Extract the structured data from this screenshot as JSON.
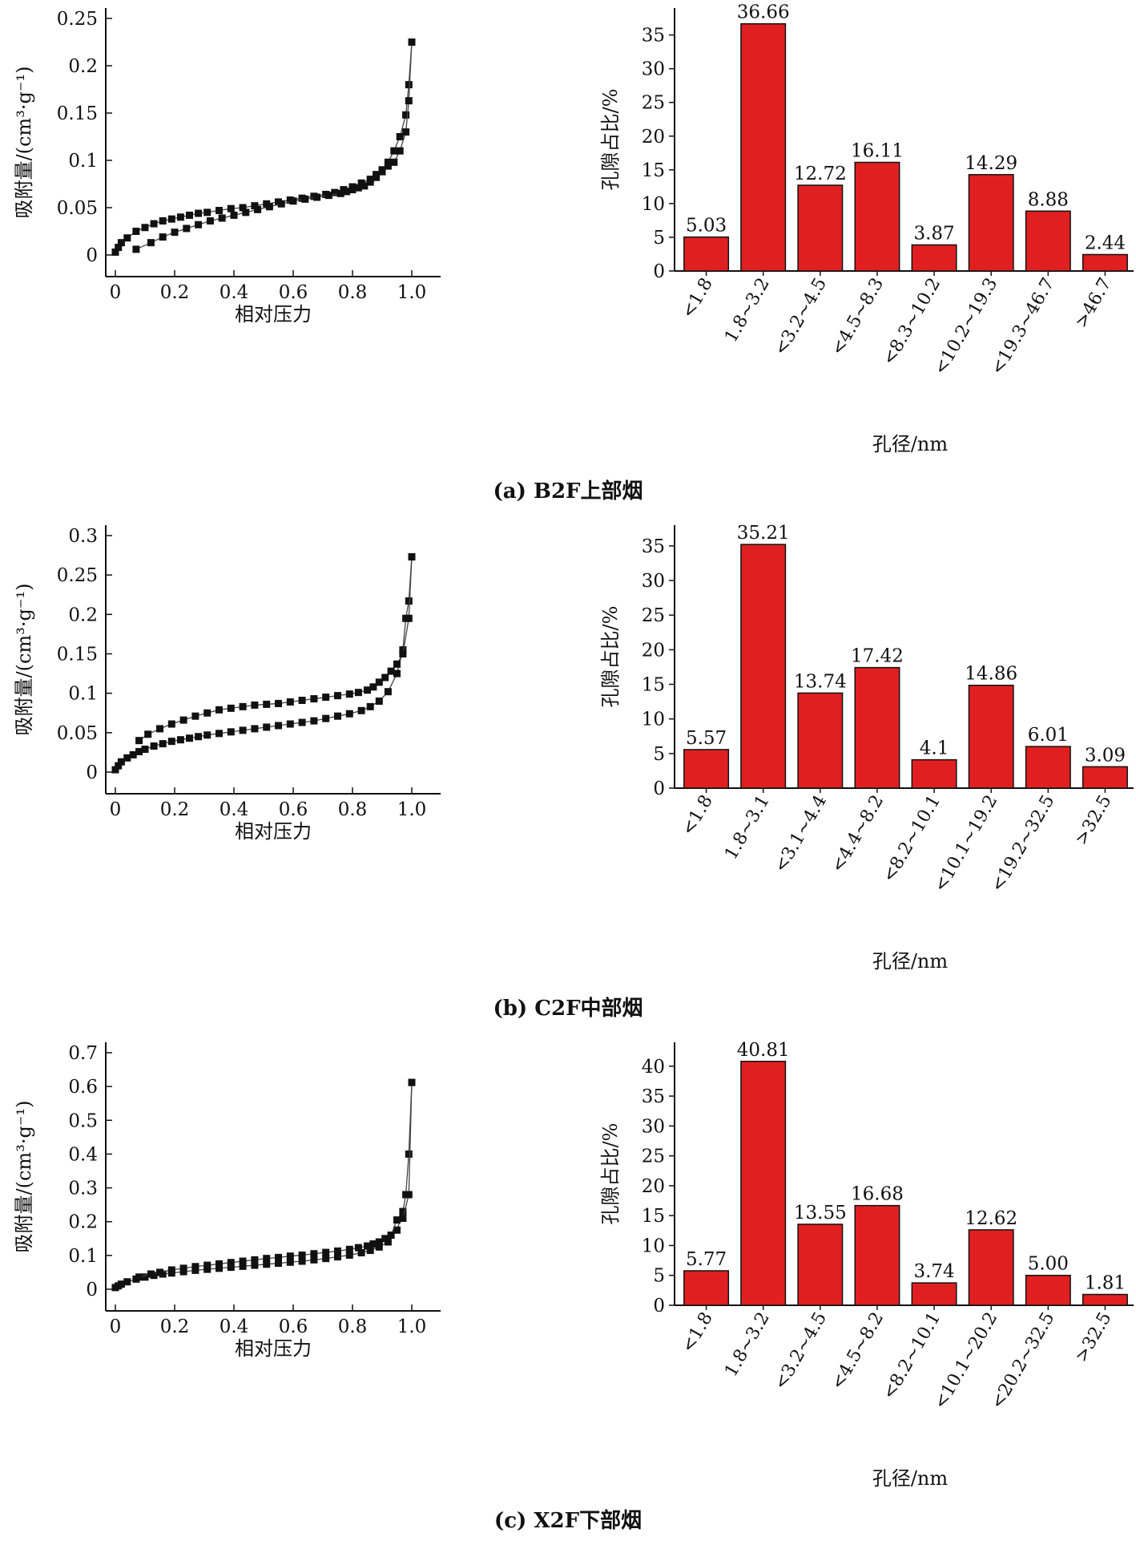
{
  "chart_data": [
    {
      "type": "scatter",
      "panel": "a",
      "xlabel": "相对压力",
      "ylabel": "吸附量/(cm³·g⁻¹)",
      "xlim": [
        0,
        1.0
      ],
      "ylim": [
        0,
        0.25
      ],
      "xticks": [
        0,
        0.2,
        0.4,
        0.6,
        0.8,
        1.0
      ],
      "yticks": [
        0,
        0.05,
        0.1,
        0.15,
        0.2,
        0.25
      ],
      "series": [
        {
          "x": [
            0.0,
            0.01,
            0.02,
            0.04,
            0.07,
            0.1,
            0.13,
            0.16,
            0.19,
            0.22,
            0.25,
            0.28,
            0.31,
            0.35,
            0.39,
            0.43,
            0.47,
            0.51,
            0.55,
            0.59,
            0.63,
            0.67,
            0.71,
            0.74,
            0.77,
            0.8,
            0.83,
            0.86,
            0.88,
            0.9,
            0.92,
            0.94,
            0.96,
            0.98,
            0.99,
            1.0
          ],
          "y": [
            0.003,
            0.008,
            0.013,
            0.018,
            0.025,
            0.029,
            0.033,
            0.036,
            0.038,
            0.04,
            0.042,
            0.044,
            0.045,
            0.047,
            0.049,
            0.05,
            0.052,
            0.054,
            0.056,
            0.058,
            0.06,
            0.062,
            0.064,
            0.066,
            0.069,
            0.072,
            0.076,
            0.08,
            0.085,
            0.09,
            0.098,
            0.11,
            0.125,
            0.148,
            0.18,
            0.225
          ]
        },
        {
          "x": [
            1.0,
            0.99,
            0.98,
            0.96,
            0.94,
            0.92,
            0.9,
            0.88,
            0.86,
            0.84,
            0.82,
            0.8,
            0.78,
            0.76,
            0.72,
            0.68,
            0.64,
            0.6,
            0.56,
            0.52,
            0.48,
            0.44,
            0.4,
            0.36,
            0.32,
            0.28,
            0.24,
            0.2,
            0.16,
            0.12,
            0.07
          ],
          "y": [
            0.225,
            0.163,
            0.13,
            0.11,
            0.098,
            0.094,
            0.088,
            0.082,
            0.077,
            0.073,
            0.071,
            0.069,
            0.067,
            0.065,
            0.063,
            0.061,
            0.059,
            0.057,
            0.054,
            0.051,
            0.048,
            0.045,
            0.042,
            0.039,
            0.036,
            0.032,
            0.028,
            0.024,
            0.019,
            0.013,
            0.006
          ]
        }
      ]
    },
    {
      "type": "bar",
      "panel": "a",
      "xlabel": "孔径/nm",
      "ylabel": "孔隙占比/%",
      "ylim": [
        0,
        39
      ],
      "yticks": [
        0,
        5,
        10,
        15,
        20,
        25,
        30,
        35
      ],
      "categories": [
        "<1.8",
        "1.8~3.2",
        "<3.2~4.5",
        "<4.5~8.3",
        "<8.3~10.2",
        "<10.2~19.3",
        "<19.3~46.7",
        ">46.7"
      ],
      "values": [
        5.03,
        36.66,
        12.72,
        16.11,
        3.87,
        14.29,
        8.88,
        2.44
      ],
      "labels": [
        "5.03",
        "36.66",
        "12.72",
        "16.11",
        "3.87",
        "14.29",
        "8.88",
        "2.44"
      ],
      "color": "#e02020"
    },
    {
      "type": "scatter",
      "panel": "b",
      "xlabel": "相对压力",
      "ylabel": "吸附量/(cm³·g⁻¹)",
      "xlim": [
        0,
        1.0
      ],
      "ylim": [
        0,
        0.3
      ],
      "xticks": [
        0,
        0.2,
        0.4,
        0.6,
        0.8,
        1.0
      ],
      "yticks": [
        0,
        0.05,
        0.1,
        0.15,
        0.2,
        0.25,
        0.3
      ],
      "series": [
        {
          "x": [
            0.0,
            0.01,
            0.02,
            0.04,
            0.06,
            0.08,
            0.1,
            0.13,
            0.16,
            0.19,
            0.22,
            0.25,
            0.28,
            0.31,
            0.35,
            0.39,
            0.43,
            0.47,
            0.51,
            0.55,
            0.59,
            0.63,
            0.67,
            0.71,
            0.75,
            0.79,
            0.83,
            0.86,
            0.89,
            0.92,
            0.95,
            0.97,
            0.98,
            0.99,
            1.0
          ],
          "y": [
            0.003,
            0.008,
            0.013,
            0.018,
            0.022,
            0.026,
            0.029,
            0.033,
            0.036,
            0.039,
            0.041,
            0.043,
            0.045,
            0.047,
            0.049,
            0.051,
            0.053,
            0.055,
            0.057,
            0.059,
            0.061,
            0.063,
            0.065,
            0.068,
            0.071,
            0.074,
            0.078,
            0.083,
            0.09,
            0.102,
            0.125,
            0.155,
            0.195,
            0.217,
            0.273
          ]
        },
        {
          "x": [
            1.0,
            0.99,
            0.97,
            0.95,
            0.93,
            0.91,
            0.89,
            0.87,
            0.85,
            0.82,
            0.79,
            0.75,
            0.71,
            0.67,
            0.63,
            0.59,
            0.55,
            0.51,
            0.47,
            0.43,
            0.39,
            0.35,
            0.31,
            0.27,
            0.23,
            0.19,
            0.15,
            0.11,
            0.08
          ],
          "y": [
            0.273,
            0.195,
            0.15,
            0.137,
            0.128,
            0.12,
            0.114,
            0.108,
            0.104,
            0.101,
            0.099,
            0.097,
            0.095,
            0.093,
            0.091,
            0.089,
            0.087,
            0.086,
            0.085,
            0.083,
            0.081,
            0.079,
            0.075,
            0.071,
            0.066,
            0.061,
            0.055,
            0.048,
            0.04
          ]
        }
      ]
    },
    {
      "type": "bar",
      "panel": "b",
      "xlabel": "孔径/nm",
      "ylabel": "孔隙占比/%",
      "ylim": [
        0,
        38
      ],
      "yticks": [
        0,
        5,
        10,
        15,
        20,
        25,
        30,
        35
      ],
      "categories": [
        "<1.8",
        "1.8~3.1",
        "<3.1~4.4",
        "<4.4~8.2",
        "<8.2~10.1",
        "<10.1~19.2",
        "<19.2~32.5",
        ">32.5"
      ],
      "values": [
        5.57,
        35.21,
        13.74,
        17.42,
        4.1,
        14.86,
        6.01,
        3.09
      ],
      "labels": [
        "5.57",
        "35.21",
        "13.74",
        "17.42",
        "4.1",
        "14.86",
        "6.01",
        "3.09"
      ],
      "color": "#e02020"
    },
    {
      "type": "scatter",
      "panel": "c",
      "xlabel": "相对压力",
      "ylabel": "吸附量/(cm³·g⁻¹)",
      "xlim": [
        0,
        1.0
      ],
      "ylim": [
        0,
        0.7
      ],
      "xticks": [
        0,
        0.2,
        0.4,
        0.6,
        0.8,
        1.0
      ],
      "yticks": [
        0,
        0.1,
        0.2,
        0.3,
        0.4,
        0.5,
        0.6,
        0.7
      ],
      "series": [
        {
          "x": [
            0.0,
            0.01,
            0.02,
            0.04,
            0.07,
            0.1,
            0.13,
            0.16,
            0.19,
            0.23,
            0.27,
            0.31,
            0.35,
            0.39,
            0.43,
            0.47,
            0.51,
            0.55,
            0.59,
            0.63,
            0.67,
            0.71,
            0.75,
            0.79,
            0.83,
            0.86,
            0.89,
            0.92,
            0.95,
            0.97,
            0.98,
            0.99,
            1.0
          ],
          "y": [
            0.005,
            0.01,
            0.015,
            0.022,
            0.03,
            0.036,
            0.041,
            0.045,
            0.048,
            0.052,
            0.056,
            0.059,
            0.062,
            0.065,
            0.068,
            0.071,
            0.074,
            0.077,
            0.08,
            0.083,
            0.087,
            0.091,
            0.096,
            0.101,
            0.108,
            0.115,
            0.125,
            0.14,
            0.175,
            0.23,
            0.28,
            0.4,
            0.612
          ]
        },
        {
          "x": [
            1.0,
            0.99,
            0.97,
            0.95,
            0.93,
            0.91,
            0.89,
            0.87,
            0.85,
            0.82,
            0.79,
            0.75,
            0.71,
            0.67,
            0.63,
            0.59,
            0.55,
            0.51,
            0.47,
            0.43,
            0.39,
            0.35,
            0.31,
            0.27,
            0.23,
            0.19,
            0.15,
            0.12,
            0.08
          ],
          "y": [
            0.612,
            0.28,
            0.21,
            0.205,
            0.16,
            0.15,
            0.14,
            0.134,
            0.128,
            0.123,
            0.118,
            0.113,
            0.109,
            0.105,
            0.101,
            0.098,
            0.094,
            0.091,
            0.087,
            0.083,
            0.079,
            0.075,
            0.071,
            0.067,
            0.062,
            0.057,
            0.05,
            0.045,
            0.036
          ]
        }
      ]
    },
    {
      "type": "bar",
      "panel": "c",
      "xlabel": "孔径/nm",
      "ylabel": "孔隙占比/%",
      "ylim": [
        0,
        44
      ],
      "yticks": [
        0,
        5,
        10,
        15,
        20,
        25,
        30,
        35,
        40
      ],
      "categories": [
        "<1.8",
        "1.8~3.2",
        "<3.2~4.5",
        "<4.5~8.2",
        "<8.2~10.1",
        "<10.1~20.2",
        "<20.2~32.5",
        ">32.5"
      ],
      "values": [
        5.77,
        40.81,
        13.55,
        16.68,
        3.74,
        12.62,
        5.0,
        1.81
      ],
      "labels": [
        "5.77",
        "40.81",
        "13.55",
        "16.68",
        "3.74",
        "12.62",
        "5.00",
        "1.81"
      ],
      "color": "#e02020"
    }
  ],
  "captions": {
    "a": "(a) B2F上部烟",
    "b": "(b) C2F中部烟",
    "c": "(c) X2F下部烟"
  }
}
